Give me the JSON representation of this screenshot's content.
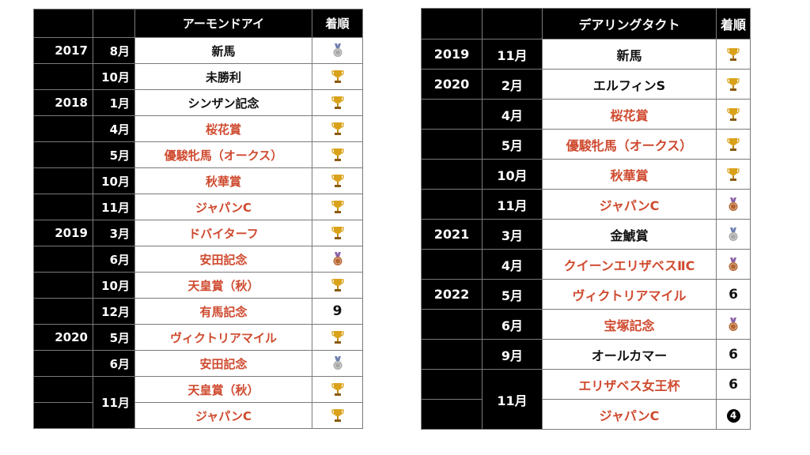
{
  "left": {
    "header": {
      "name": "アーモンドアイ",
      "place": "着順"
    },
    "rows": [
      {
        "year": "2017",
        "month": "8月",
        "race": "新馬",
        "g1": false,
        "result": "silver"
      },
      {
        "year": "",
        "month": "10月",
        "race": "未勝利",
        "g1": false,
        "result": "trophy"
      },
      {
        "year": "2018",
        "month": "1月",
        "race": "シンザン記念",
        "g1": false,
        "result": "trophy"
      },
      {
        "year": "",
        "month": "4月",
        "race": "桜花賞",
        "g1": true,
        "result": "trophy"
      },
      {
        "year": "",
        "month": "5月",
        "race": "優駿牝馬（オークス）",
        "g1": true,
        "result": "trophy"
      },
      {
        "year": "",
        "month": "10月",
        "race": "秋華賞",
        "g1": true,
        "result": "trophy"
      },
      {
        "year": "",
        "month": "11月",
        "race": "ジャパンC",
        "g1": true,
        "result": "trophy"
      },
      {
        "year": "2019",
        "month": "3月",
        "race": "ドバイターフ",
        "g1": true,
        "result": "trophy"
      },
      {
        "year": "",
        "month": "6月",
        "race": "安田記念",
        "g1": true,
        "result": "bronze"
      },
      {
        "year": "",
        "month": "10月",
        "race": "天皇賞（秋）",
        "g1": true,
        "result": "trophy"
      },
      {
        "year": "",
        "month": "12月",
        "race": "有馬記念",
        "g1": true,
        "result": "9"
      },
      {
        "year": "2020",
        "month": "5月",
        "race": "ヴィクトリアマイル",
        "g1": true,
        "result": "trophy"
      },
      {
        "year": "",
        "month": "6月",
        "race": "安田記念",
        "g1": true,
        "result": "silver"
      },
      {
        "year": "",
        "month": "11月",
        "race": "天皇賞（秋）",
        "g1": true,
        "result": "trophy"
      },
      {
        "year": "",
        "month": "",
        "race": "ジャパンC",
        "g1": true,
        "result": "trophy"
      }
    ]
  },
  "right": {
    "header": {
      "name": "デアリングタクト",
      "place": "着順"
    },
    "rows": [
      {
        "year": "2019",
        "month": "11月",
        "race": "新馬",
        "g1": false,
        "result": "trophy"
      },
      {
        "year": "2020",
        "month": "2月",
        "race": "エルフィンS",
        "g1": false,
        "result": "trophy"
      },
      {
        "year": "",
        "month": "4月",
        "race": "桜花賞",
        "g1": true,
        "result": "trophy"
      },
      {
        "year": "",
        "month": "5月",
        "race": "優駿牝馬（オークス）",
        "g1": true,
        "result": "trophy"
      },
      {
        "year": "",
        "month": "10月",
        "race": "秋華賞",
        "g1": true,
        "result": "trophy"
      },
      {
        "year": "",
        "month": "11月",
        "race": "ジャパンC",
        "g1": true,
        "result": "bronze"
      },
      {
        "year": "2021",
        "month": "3月",
        "race": "金鯱賞",
        "g1": false,
        "result": "silver"
      },
      {
        "year": "",
        "month": "4月",
        "race": "クイーンエリザベスⅡC",
        "g1": true,
        "result": "bronze"
      },
      {
        "year": "2022",
        "month": "5月",
        "race": "ヴィクトリアマイル",
        "g1": true,
        "result": "6"
      },
      {
        "year": "",
        "month": "6月",
        "race": "宝塚記念",
        "g1": true,
        "result": "bronze"
      },
      {
        "year": "",
        "month": "9月",
        "race": "オールカマー",
        "g1": false,
        "result": "6"
      },
      {
        "year": "",
        "month": "11月",
        "race": "エリザベス女王杯",
        "g1": true,
        "result": "6"
      },
      {
        "year": "",
        "month": "",
        "race": "ジャパンC",
        "g1": true,
        "result": "4"
      }
    ]
  },
  "colors": {
    "g1_race": "#cf4a2f",
    "gold": "#d9a21a",
    "silver": "#a8a8a8",
    "bronze": "#b5652e"
  }
}
